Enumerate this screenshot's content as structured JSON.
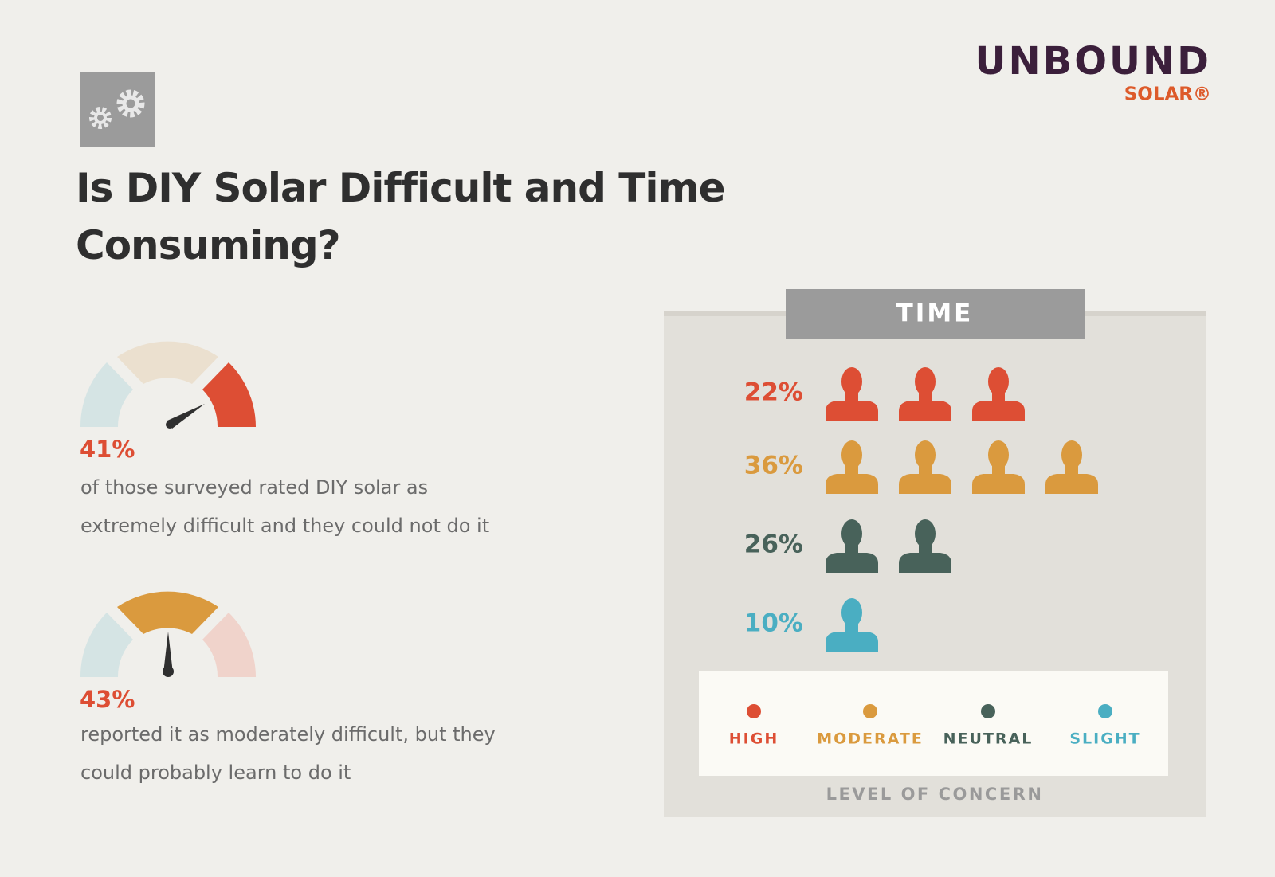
{
  "logo": {
    "name": "UNBOUND",
    "sub": "SOLAR®"
  },
  "title": "Is DIY Solar Difficult and Time Consuming?",
  "gauges": [
    {
      "value": "41%",
      "text": "of those surveyed rated DIY solar as extremely difficult and they could not do it"
    },
    {
      "value": "43%",
      "text": "reported it as moderately difficult, but they could probably learn to do it"
    }
  ],
  "panel": {
    "title": "TIME",
    "rows": [
      {
        "value": "22%",
        "icons": 3,
        "color": "#dd4e34"
      },
      {
        "value": "36%",
        "icons": 4,
        "color": "#da9a3e"
      },
      {
        "value": "26%",
        "icons": 2,
        "color": "#48625a"
      },
      {
        "value": "10%",
        "icons": 1,
        "color": "#4aaec2"
      }
    ],
    "legend": [
      {
        "label": "HIGH",
        "color": "#dd4e34"
      },
      {
        "label": "MODERATE",
        "color": "#da9a3e"
      },
      {
        "label": "NEUTRAL",
        "color": "#48625a"
      },
      {
        "label": "SLIGHT",
        "color": "#4aaec2"
      }
    ],
    "caption": "LEVEL OF CONCERN"
  }
}
